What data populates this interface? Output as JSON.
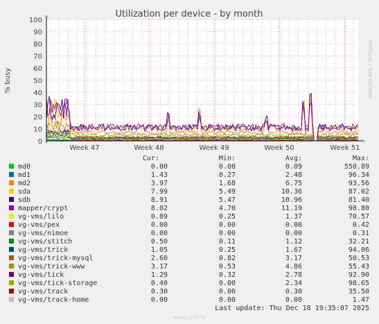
{
  "chart_data": {
    "type": "line",
    "title": "Utilization per device - by month",
    "ylabel": "% busy",
    "ylim": [
      0,
      100
    ],
    "yticks": [
      0,
      10,
      20,
      30,
      40,
      50,
      60,
      70,
      80,
      90,
      100
    ],
    "x_tick_labels": [
      "Week 47",
      "Week 48",
      "Week 49",
      "Week 50",
      "Week 51"
    ],
    "legend_headers": {
      "cur": "Cur:",
      "min": "Min:",
      "avg": "Avg:",
      "max": "Max:"
    },
    "series": [
      {
        "name": "md0",
        "color": "#00cc00",
        "cur": "0.00",
        "min": "0.00",
        "avg": "0.09",
        "max": "550.89"
      },
      {
        "name": "md1",
        "color": "#0066b3",
        "cur": "1.43",
        "min": "0.27",
        "avg": "2.48",
        "max": "96.34"
      },
      {
        "name": "md2",
        "color": "#ff8000",
        "cur": "3.97",
        "min": "1.68",
        "avg": "6.75",
        "max": "93.56"
      },
      {
        "name": "sda",
        "color": "#ffcc00",
        "cur": "7.99",
        "min": "5.49",
        "avg": "10.36",
        "max": "87.02"
      },
      {
        "name": "sdb",
        "color": "#330099",
        "cur": "8.91",
        "min": "5.47",
        "avg": "10.96",
        "max": "81.40"
      },
      {
        "name": "mapper/crypt",
        "color": "#990099",
        "cur": "8.02",
        "min": "4.70",
        "avg": "11.19",
        "max": "98.80"
      },
      {
        "name": "vg-vms/lilo",
        "color": "#ccff00",
        "cur": "0.89",
        "min": "0.25",
        "avg": "1.37",
        "max": "70.57"
      },
      {
        "name": "vg-vms/pex",
        "color": "#ff0000",
        "cur": "0.00",
        "min": "0.00",
        "avg": "0.00",
        "max": "0.42"
      },
      {
        "name": "vg-vms/nimoe",
        "color": "#808080",
        "cur": "0.00",
        "min": "0.00",
        "avg": "0.00",
        "max": "0.31"
      },
      {
        "name": "vg-vms/stitch",
        "color": "#008f00",
        "cur": "0.50",
        "min": "0.11",
        "avg": "1.12",
        "max": "32.21"
      },
      {
        "name": "vg-vms/trick",
        "color": "#00487d",
        "cur": "1.05",
        "min": "0.25",
        "avg": "1.67",
        "max": "94.06"
      },
      {
        "name": "vg-vms/trick-mysql",
        "color": "#b35a00",
        "cur": "2.60",
        "min": "0.82",
        "avg": "3.17",
        "max": "50.53"
      },
      {
        "name": "vg-vms/trick-www",
        "color": "#b38f00",
        "cur": "3.17",
        "min": "0.53",
        "avg": "4.86",
        "max": "55.43"
      },
      {
        "name": "vg-vms/tick",
        "color": "#6b006b",
        "cur": "1.29",
        "min": "0.32",
        "avg": "2.78",
        "max": "92.90"
      },
      {
        "name": "vg-vms/tick-storage",
        "color": "#8fb300",
        "cur": "0.40",
        "min": "0.00",
        "avg": "2.34",
        "max": "98.65"
      },
      {
        "name": "vg-vms/track",
        "color": "#b30000",
        "cur": "0.30",
        "min": "0.00",
        "avg": "0.30",
        "max": "35.50"
      },
      {
        "name": "vg-vms/track-home",
        "color": "#bebebe",
        "cur": "0.00",
        "min": "0.00",
        "avg": "0.00",
        "max": "1.47"
      }
    ],
    "last_update": "Last update: Thu Dec 18 19:35:07 2025",
    "side_label": "RRDTOOL / TOBI OETIKER",
    "footer": "Munin 2.0.76"
  }
}
